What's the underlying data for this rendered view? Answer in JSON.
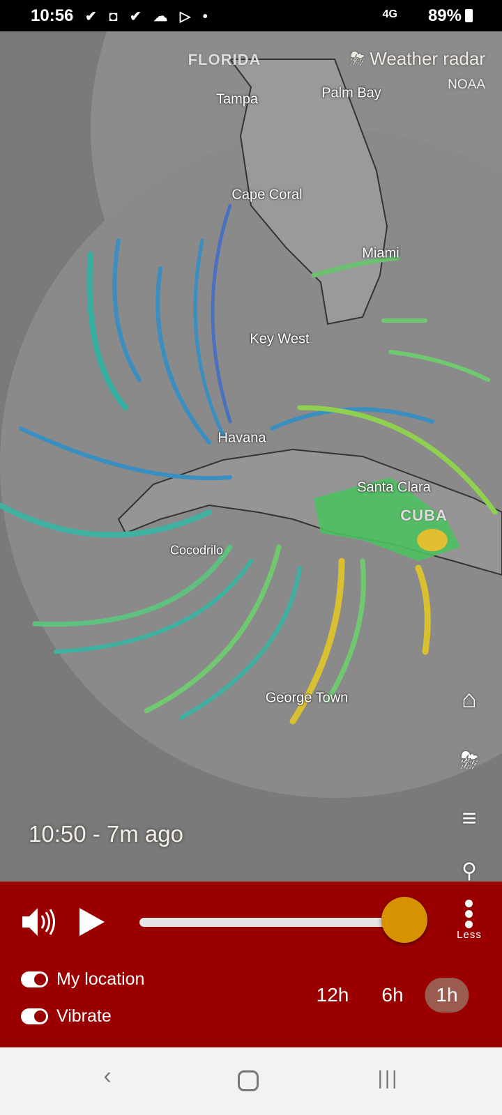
{
  "status_bar": {
    "time": "10:56",
    "network": "4G",
    "battery": "89%"
  },
  "map": {
    "brand": "Weather radar",
    "source": "NOAA",
    "labels": {
      "florida": "FLORIDA",
      "tampa": "Tampa",
      "palm_bay": "Palm Bay",
      "cape_coral": "Cape Coral",
      "miami": "Miami",
      "key_west": "Key West",
      "havana": "Havana",
      "santa_clara": "Santa Clara",
      "cuba": "CUBA",
      "cocodrilo": "Cocodrilo",
      "george_town": "George Town"
    },
    "timestamp": "10:50 - 7m ago",
    "side_icons": [
      "home-icon",
      "storm-icon",
      "menu-icon",
      "search-icon"
    ]
  },
  "controls": {
    "slider_position_pct": 100,
    "more_label": "Less",
    "toggles": [
      {
        "label": "My location",
        "on": true
      },
      {
        "label": "Vibrate",
        "on": true
      }
    ],
    "ranges": [
      {
        "label": "12h",
        "selected": false
      },
      {
        "label": "6h",
        "selected": false
      },
      {
        "label": "1h",
        "selected": true
      }
    ]
  },
  "colors": {
    "panel": "#9b0000",
    "thumb": "#d69200",
    "selected_range": "#9a5c50"
  }
}
